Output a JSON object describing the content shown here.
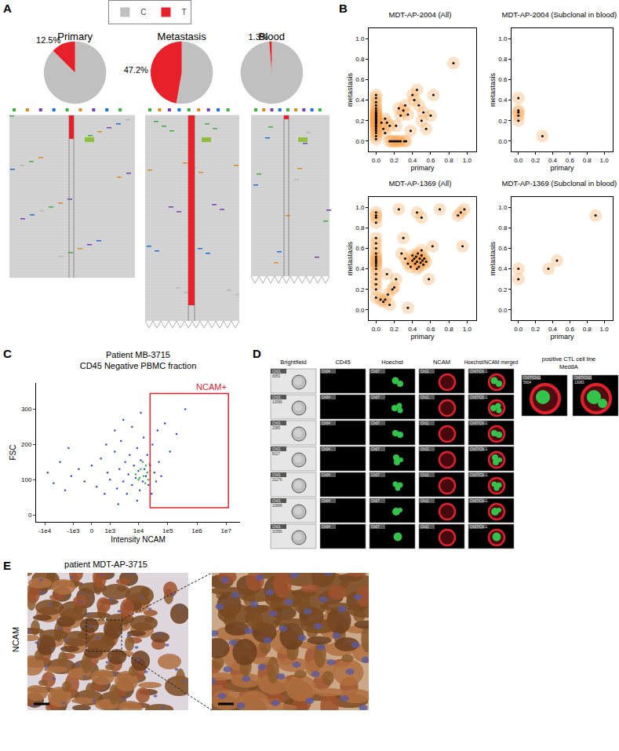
{
  "panel_labels": [
    "A",
    "B",
    "C",
    "D",
    "E"
  ],
  "chart_data": [
    {
      "type": "pie",
      "title": "Primary",
      "categories": [
        "C",
        "T"
      ],
      "values": [
        87.5,
        12.5
      ],
      "value_labels": [
        null,
        "12.5%"
      ],
      "colors": [
        "#c0c0c0",
        "#e8202a"
      ],
      "data_labels": true,
      "legend": "top"
    },
    {
      "type": "pie",
      "title": "Metastasis",
      "categories": [
        "C",
        "T"
      ],
      "values": [
        52.8,
        47.2
      ],
      "value_labels": [
        null,
        "47.2%"
      ],
      "colors": [
        "#c0c0c0",
        "#e8202a"
      ],
      "data_labels": true
    },
    {
      "type": "pie",
      "title": "Blood",
      "categories": [
        "C",
        "T"
      ],
      "values": [
        98.7,
        1.3
      ],
      "value_labels": [
        null,
        "1.3%"
      ],
      "colors": [
        "#c0c0c0",
        "#e8202a"
      ],
      "data_labels": true
    },
    {
      "type": "scatter",
      "title": "MDT-AP-2004 (All)",
      "x_label": "primary",
      "y_label": "metastasis",
      "xlim": [
        -0.08,
        1.1
      ],
      "ylim": [
        -0.1,
        1.1
      ],
      "xticks": [
        {
          "value": 0,
          "label": "0.0"
        },
        0.2,
        0.4,
        0.6,
        0.8,
        {
          "value": 1,
          "label": "1.0"
        }
      ],
      "yticks": [
        {
          "value": 0,
          "label": "0.0"
        },
        0.2,
        0.4,
        0.6,
        0.8,
        {
          "value": 1,
          "label": "1.0"
        }
      ],
      "series": [
        {
          "color": "#000000",
          "x": [
            0,
            0,
            0,
            0,
            0,
            0,
            0,
            0,
            0,
            0,
            0,
            0,
            0,
            0,
            0,
            0,
            0,
            0,
            0,
            0,
            0,
            0,
            0,
            0,
            0,
            0.15,
            0.17,
            0.19,
            0.21,
            0.23,
            0.25,
            0.27,
            0.31,
            0.33,
            0.06,
            0.08,
            0.1,
            0.12,
            0.1,
            0.15,
            0.22,
            0.25,
            0.27,
            0.3,
            0.32,
            0.35,
            0.38,
            0.4,
            0.42,
            0.45,
            0.47,
            0.5,
            0.52,
            0.55,
            0.6,
            0.63,
            0.85
          ],
          "y": [
            0.02,
            0.05,
            0.08,
            0.1,
            0.12,
            0.14,
            0.15,
            0.17,
            0.18,
            0.19,
            0.2,
            0.21,
            0.22,
            0.23,
            0.24,
            0.25,
            0.26,
            0.27,
            0.28,
            0.3,
            0.32,
            0.35,
            0.38,
            0.42,
            0.45,
            0,
            0,
            0,
            0,
            0,
            0,
            0,
            0,
            0,
            0.18,
            0.12,
            0.22,
            0.18,
            0.08,
            0.15,
            0.15,
            0.32,
            0.25,
            0.3,
            0.35,
            0.26,
            0.1,
            0.45,
            0.4,
            0.5,
            0.35,
            0.2,
            0.28,
            0.12,
            0.25,
            0.45,
            0.76
          ]
        }
      ]
    },
    {
      "type": "scatter",
      "title": "MDT-AP-2004 (Subclonal in blood)",
      "x_label": "primary",
      "y_label": "metastasis",
      "xlim": [
        -0.08,
        1.1
      ],
      "ylim": [
        -0.1,
        1.1
      ],
      "xticks": [
        {
          "value": 0,
          "label": "0.0"
        },
        0.2,
        0.4,
        0.6,
        0.8,
        {
          "value": 1,
          "label": "1.0"
        }
      ],
      "yticks": [
        {
          "value": 0,
          "label": "0.0"
        },
        0.2,
        0.4,
        0.6,
        0.8,
        {
          "value": 1,
          "label": "1.0"
        }
      ],
      "series": [
        {
          "color": "#000000",
          "x": [
            0,
            0,
            0,
            0,
            0,
            0.28
          ],
          "y": [
            0.2,
            0.25,
            0.28,
            0.3,
            0.42,
            0.05
          ]
        }
      ]
    },
    {
      "type": "scatter",
      "title": "MDT-AP-1369 (All)",
      "x_label": "primary",
      "y_label": "metastasis",
      "xlim": [
        -0.08,
        1.1
      ],
      "ylim": [
        -0.1,
        1.1
      ],
      "xticks": [
        {
          "value": 0,
          "label": "0.0"
        },
        0.2,
        0.4,
        0.6,
        0.8,
        {
          "value": 1,
          "label": "1.0"
        }
      ],
      "yticks": [
        {
          "value": 0,
          "label": "0.0"
        },
        0.2,
        0.4,
        0.6,
        0.8,
        {
          "value": 1,
          "label": "1.0"
        }
      ],
      "series": [
        {
          "color": "#000000",
          "x": [
            0,
            0,
            0,
            0,
            0,
            0,
            0,
            0,
            0,
            0,
            0,
            0,
            0,
            0,
            0,
            0,
            0,
            0,
            0,
            0,
            0.05,
            0.08,
            0.1,
            0.12,
            0.13,
            0.15,
            0.18,
            0.2,
            0.22,
            0.25,
            0.28,
            0.3,
            0.32,
            0.35,
            0.35,
            0.45,
            0.5,
            0.58,
            0.62,
            0.7,
            0.9,
            0.93,
            0.95,
            0.97,
            0.38,
            0.4,
            0.42,
            0.43,
            0.44,
            0.45,
            0.46,
            0.47,
            0.48,
            0.49,
            0.5,
            0.51,
            0.52,
            0.53,
            0.55,
            0.5,
            0.45,
            0.4
          ],
          "y": [
            0.12,
            0.2,
            0.25,
            0.3,
            0.35,
            0.4,
            0.43,
            0.45,
            0.47,
            0.48,
            0.5,
            0.52,
            0.55,
            0.6,
            0.65,
            0.7,
            0.85,
            0.9,
            0.92,
            0.95,
            0.1,
            0.08,
            0.1,
            0.35,
            0.15,
            0.05,
            0.2,
            0.22,
            0.3,
            0.98,
            0.55,
            0.7,
            0.5,
            0.45,
            0.02,
            0.95,
            0.9,
            0.3,
            0.62,
            0.98,
            0.92,
            0.95,
            0.62,
            0.98,
            0.42,
            0.48,
            0.5,
            0.45,
            0.52,
            0.47,
            0.55,
            0.42,
            0.5,
            0.46,
            0.53,
            0.48,
            0.44,
            0.5,
            0.47,
            0.58,
            0.4,
            0.53
          ]
        }
      ]
    },
    {
      "type": "scatter",
      "title": "MDT-AP-1369 (Subclonal in blood)",
      "x_label": "primary",
      "y_label": "metastasis",
      "xlim": [
        -0.08,
        1.1
      ],
      "ylim": [
        -0.1,
        1.1
      ],
      "xticks": [
        {
          "value": 0,
          "label": "0.0"
        },
        0.2,
        0.4,
        0.6,
        0.8,
        {
          "value": 1,
          "label": "1.0"
        }
      ],
      "yticks": [
        {
          "value": 0,
          "label": "0.0"
        },
        0.2,
        0.4,
        0.6,
        0.8,
        {
          "value": 1,
          "label": "1.0"
        }
      ],
      "series": [
        {
          "color": "#000000",
          "x": [
            0,
            0,
            0.35,
            0.45,
            0.9
          ],
          "y": [
            0.4,
            0.3,
            0.4,
            0.48,
            0.92
          ]
        }
      ]
    },
    {
      "type": "cytometry",
      "title": "Patient MB-3715\nCD45 Negative PBMC fraction",
      "x_label": "Intensity NCAM",
      "y_label": "FSC",
      "xlim": [
        -20000,
        30000000
      ],
      "ylim": [
        -20,
        375
      ],
      "xticks": [
        {
          "value": -10000,
          "label": "-1e4"
        },
        {
          "value": -1000,
          "label": "-1e3"
        },
        0,
        {
          "value": 1000,
          "label": "1e3"
        },
        {
          "value": 10000,
          "label": "1e4"
        },
        {
          "value": 100000,
          "label": "1e5"
        },
        {
          "value": 1000000,
          "label": "1e6"
        },
        {
          "value": 10000000,
          "label": "1e7"
        }
      ],
      "yticks": [
        0,
        100,
        200,
        300
      ],
      "gate": {
        "x": [
          25000,
          12000000
        ],
        "y": [
          20,
          345
        ],
        "label": "NCAM+",
        "color": "#e8202a"
      },
      "series": [
        {
          "color": "#2a4ed8",
          "x": [
            -8000,
            -5000,
            -3000,
            -2000,
            -1200,
            -600,
            -300,
            0,
            200,
            400,
            600,
            800,
            1000,
            1500,
            1800,
            2200,
            2500,
            3000,
            3500,
            4000,
            4500,
            5000,
            6000,
            7000,
            8000,
            9000,
            10000,
            11000,
            12000,
            14000,
            15000,
            16000,
            18000,
            20000,
            22000,
            25000,
            28000,
            30000,
            35000,
            40000,
            45000,
            50000,
            60000,
            80000,
            120000,
            200000,
            400000,
            1500,
            700,
            -1500,
            3000,
            6000,
            9000,
            2000,
            12000
          ],
          "y": [
            120,
            90,
            150,
            70,
            110,
            130,
            95,
            140,
            80,
            160,
            60,
            120,
            100,
            180,
            75,
            130,
            210,
            95,
            150,
            60,
            115,
            170,
            85,
            140,
            105,
            190,
            125,
            70,
            155,
            95,
            220,
            130,
            110,
            170,
            85,
            140,
            60,
            200,
            120,
            95,
            240,
            150,
            110,
            260,
            180,
            230,
            300,
            240,
            200,
            190,
            270,
            250,
            40,
            30,
            290
          ]
        },
        {
          "color": "#33b84a",
          "x": [
            8000,
            10000,
            12000,
            15000,
            18000,
            20000,
            22000,
            25000,
            14000,
            17000,
            11000,
            24000
          ],
          "y": [
            115,
            100,
            130,
            110,
            140,
            120,
            100,
            125,
            150,
            90,
            105,
            145
          ]
        }
      ]
    }
  ],
  "imaging": {
    "columns": [
      {
        "header": "Brightfield",
        "channel": "Ch01"
      },
      {
        "header": "CD45",
        "channel": "Ch04"
      },
      {
        "header": "Hoechst",
        "channel": "Ch07"
      },
      {
        "header": "NCAM",
        "channel": "Ch11"
      },
      {
        "header": "Hoechst/NCAM merged",
        "channel": "Ch07/Ch11"
      }
    ],
    "cell_ids": [
      "6053",
      "12099",
      "2385",
      "8117",
      "21276",
      "22868",
      "31550"
    ],
    "reference": {
      "title": "positive CTL cell line",
      "cell_line": "Med8A",
      "channel": "Ch07/Ch11",
      "cell_ids": [
        "5604",
        "13083"
      ]
    }
  },
  "ihc": {
    "title": "patient MDT-AP-3715",
    "stain": "NCAM"
  }
}
